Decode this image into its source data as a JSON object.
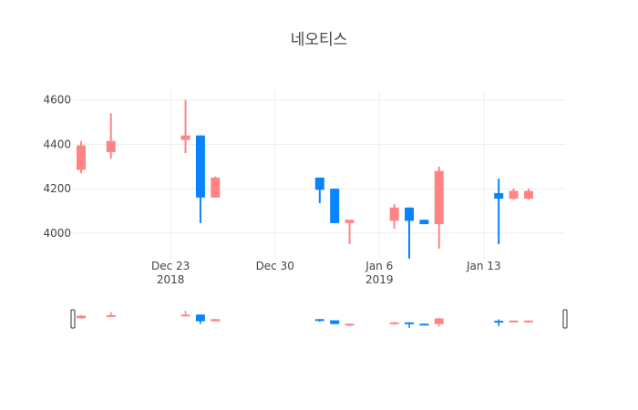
{
  "chart_data": {
    "type": "candlestick",
    "title": "네오티스",
    "xlabel": "",
    "ylabel": "",
    "ylim": [
      3880,
      4640
    ],
    "xlim": [
      "2018-12-17",
      "2019-01-18"
    ],
    "yticks": [
      4000,
      4200,
      4400,
      4600
    ],
    "xticks": [
      {
        "date": "2018-12-23",
        "label": "Dec 23",
        "sublabel": "2018"
      },
      {
        "date": "2018-12-30",
        "label": "Dec 30",
        "sublabel": ""
      },
      {
        "date": "2019-01-06",
        "label": "Jan 6",
        "sublabel": "2019"
      },
      {
        "date": "2019-01-13",
        "label": "Jan 13",
        "sublabel": ""
      }
    ],
    "grid": true,
    "increasing_color": "#ff8585",
    "decreasing_color": "#0984ff",
    "series": [
      {
        "date": "2018-12-17",
        "open": 4285,
        "high": 4415,
        "low": 4270,
        "close": 4395
      },
      {
        "date": "2018-12-19",
        "open": 4365,
        "high": 4540,
        "low": 4335,
        "close": 4415
      },
      {
        "date": "2018-12-24",
        "open": 4420,
        "high": 4600,
        "low": 4360,
        "close": 4440
      },
      {
        "date": "2018-12-25",
        "open": 4440,
        "high": 4440,
        "low": 4045,
        "close": 4160
      },
      {
        "date": "2018-12-26",
        "open": 4160,
        "high": 4255,
        "low": 4160,
        "close": 4250
      },
      {
        "date": "2019-01-02",
        "open": 4250,
        "high": 4250,
        "low": 4135,
        "close": 4195
      },
      {
        "date": "2019-01-03",
        "open": 4200,
        "high": 4200,
        "low": 4045,
        "close": 4045
      },
      {
        "date": "2019-01-04",
        "open": 4045,
        "high": 4060,
        "low": 3950,
        "close": 4060
      },
      {
        "date": "2019-01-07",
        "open": 4055,
        "high": 4130,
        "low": 4020,
        "close": 4115
      },
      {
        "date": "2019-01-08",
        "open": 4115,
        "high": 4115,
        "low": 3885,
        "close": 4055
      },
      {
        "date": "2019-01-09",
        "open": 4060,
        "high": 4060,
        "low": 4040,
        "close": 4040
      },
      {
        "date": "2019-01-10",
        "open": 4040,
        "high": 4300,
        "low": 3930,
        "close": 4280
      },
      {
        "date": "2019-01-14",
        "open": 4180,
        "high": 4245,
        "low": 3950,
        "close": 4155
      },
      {
        "date": "2019-01-15",
        "open": 4155,
        "high": 4200,
        "low": 4150,
        "close": 4190
      },
      {
        "date": "2019-01-16",
        "open": 4155,
        "high": 4200,
        "low": 4150,
        "close": 4190
      }
    ]
  }
}
